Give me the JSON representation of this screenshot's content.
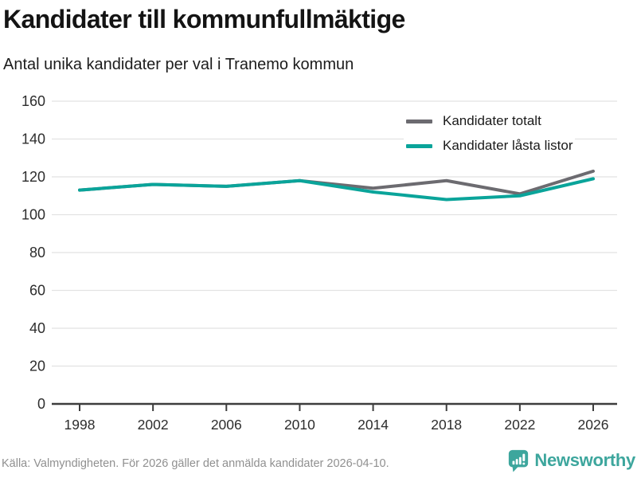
{
  "chart_data": {
    "type": "line",
    "title": "Kandidater till kommunfullmäktige",
    "subtitle": "Antal unika kandidater per val i Tranemo kommun",
    "x": [
      1998,
      2002,
      2006,
      2010,
      2014,
      2018,
      2022,
      2026
    ],
    "series": [
      {
        "name": "Kandidater totalt",
        "color": "#6c6b70",
        "values": [
          113,
          116,
          115,
          118,
          114,
          118,
          111,
          123
        ]
      },
      {
        "name": "Kandidater låsta listor",
        "color": "#0aa49a",
        "values": [
          113,
          116,
          115,
          118,
          112,
          108,
          110,
          119
        ]
      }
    ],
    "ylim": [
      0,
      160
    ],
    "ytick_step": 20,
    "grid": true,
    "legend_position": "top-right"
  },
  "footer": {
    "source": "Källa: Valmyndigheten. För 2026 gäller det anmälda kandidater 2026-04-10.",
    "brand": "Newsworthy",
    "brand_color": "#3da69d"
  },
  "style_colors": {
    "gridline": "#e2e2e2",
    "axis": "#3d3d3d",
    "tick_label": "#2d2d2d"
  }
}
